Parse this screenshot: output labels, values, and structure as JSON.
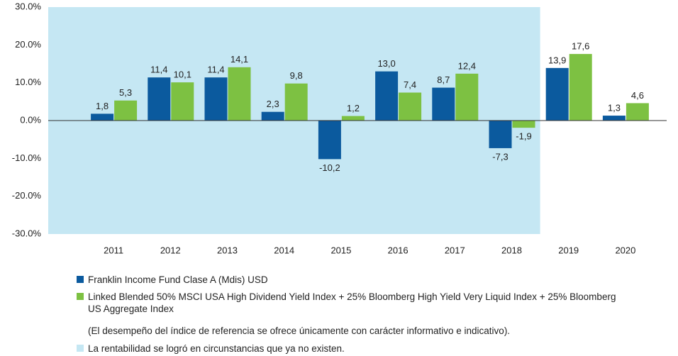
{
  "chart_data": {
    "type": "bar",
    "categories": [
      "2011",
      "2012",
      "2013",
      "2014",
      "2015",
      "2016",
      "2017",
      "2018",
      "2019",
      "2020"
    ],
    "series": [
      {
        "name": "Franklin Income Fund Clase A (Mdis) USD",
        "color": "#0b5a9e",
        "values": [
          1.8,
          11.4,
          11.4,
          2.3,
          -10.2,
          13.0,
          8.7,
          -7.3,
          13.9,
          1.3
        ],
        "value_labels": [
          "1,8",
          "11,4",
          "11,4",
          "2,3",
          "-10,2",
          "13,0",
          "8,7",
          "-7,3",
          "13,9",
          "1,3"
        ]
      },
      {
        "name": "Linked Blended 50% MSCI USA High Dividend Yield Index + 25% Bloomberg High Yield Very Liquid Index + 25% Bloomberg US Aggregate Index",
        "color": "#7dc142",
        "values": [
          5.3,
          10.1,
          14.1,
          9.8,
          1.2,
          7.4,
          12.4,
          -1.9,
          17.6,
          4.6
        ],
        "value_labels": [
          "5,3",
          "10,1",
          "14,1",
          "9,8",
          "1,2",
          "7,4",
          "12,4",
          "-1,9",
          "17,6",
          "4,6"
        ]
      }
    ],
    "ylim": [
      -30,
      30
    ],
    "yticks": [
      {
        "value": -30,
        "label": "-30.0%"
      },
      {
        "value": -20,
        "label": "-20.0%"
      },
      {
        "value": -10,
        "label": "-10.0%"
      },
      {
        "value": 0,
        "label": "0.0%"
      },
      {
        "value": 10,
        "label": "10.0%"
      },
      {
        "value": 20,
        "label": "20.0%"
      },
      {
        "value": 30,
        "label": "30.0%"
      }
    ],
    "note": "(El desempeño del índice de referencia se ofrece únicamente con carácter informativo e indicativo).",
    "highlight": {
      "label": "La rentabilidad se logró en circunstancias que ya no existen.",
      "color": "#c5e7f3",
      "categories": [
        "2011",
        "2018"
      ]
    }
  }
}
